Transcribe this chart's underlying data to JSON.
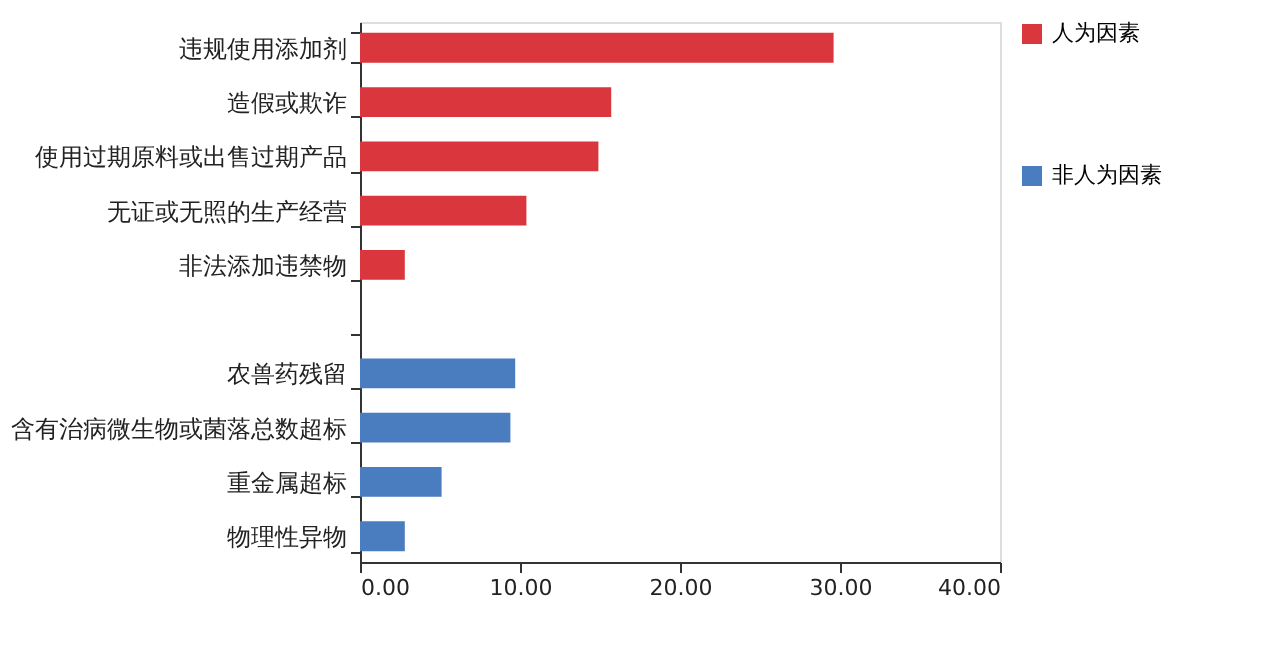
{
  "chart_data": {
    "type": "bar",
    "orientation": "horizontal",
    "categories": [
      "违规使用添加剂",
      "造假或欺诈",
      "使用过期原料或出售过期产品",
      "无证或无照的生产经营",
      "非法添加违禁物",
      null,
      "农兽药残留",
      "含有治病微生物或菌落总数超标",
      "重金属超标",
      "物理性异物"
    ],
    "series": [
      {
        "name": "人为因素",
        "color": "#d9363e",
        "values": [
          29.6,
          15.7,
          14.9,
          10.4,
          2.8,
          null,
          null,
          null,
          null,
          null
        ]
      },
      {
        "name": "非人为因素",
        "color": "#4a7cc0",
        "values": [
          null,
          null,
          null,
          null,
          null,
          null,
          9.7,
          9.4,
          5.1,
          2.8
        ]
      }
    ],
    "xlim": [
      0,
      40
    ],
    "xticks": [
      {
        "value": 0,
        "label": "0.00"
      },
      {
        "value": 10,
        "label": "10.00"
      },
      {
        "value": 20,
        "label": "20.00"
      },
      {
        "value": 30,
        "label": "30.00"
      },
      {
        "value": 40,
        "label": "40.00"
      }
    ],
    "grid": false,
    "legend": "right"
  }
}
